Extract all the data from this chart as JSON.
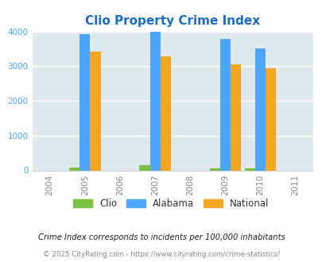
{
  "title": "Clio Property Crime Index",
  "title_color": "#1a6ebd",
  "years": [
    2004,
    2005,
    2006,
    2007,
    2008,
    2009,
    2010,
    2011
  ],
  "bar_years": [
    2005,
    2007,
    2009,
    2010
  ],
  "clio_values": [
    75,
    140,
    60,
    50
  ],
  "alabama_values": [
    3920,
    3980,
    3780,
    3510
  ],
  "national_values": [
    3430,
    3290,
    3050,
    2940
  ],
  "clio_color": "#7dc142",
  "alabama_color": "#4da6ff",
  "national_color": "#f5a623",
  "bg_color": "#deeaed",
  "ylim": [
    0,
    4000
  ],
  "yticks": [
    0,
    1000,
    2000,
    3000,
    4000
  ],
  "bar_width": 0.3,
  "footnote1": "Crime Index corresponds to incidents per 100,000 inhabitants",
  "footnote2": "© 2025 CityRating.com - https://www.cityrating.com/crime-statistics/",
  "legend_labels": [
    "Clio",
    "Alabama",
    "National"
  ],
  "grid_color": "#ffffff",
  "tick_color": "#888888",
  "ytick_color": "#4da6ff"
}
